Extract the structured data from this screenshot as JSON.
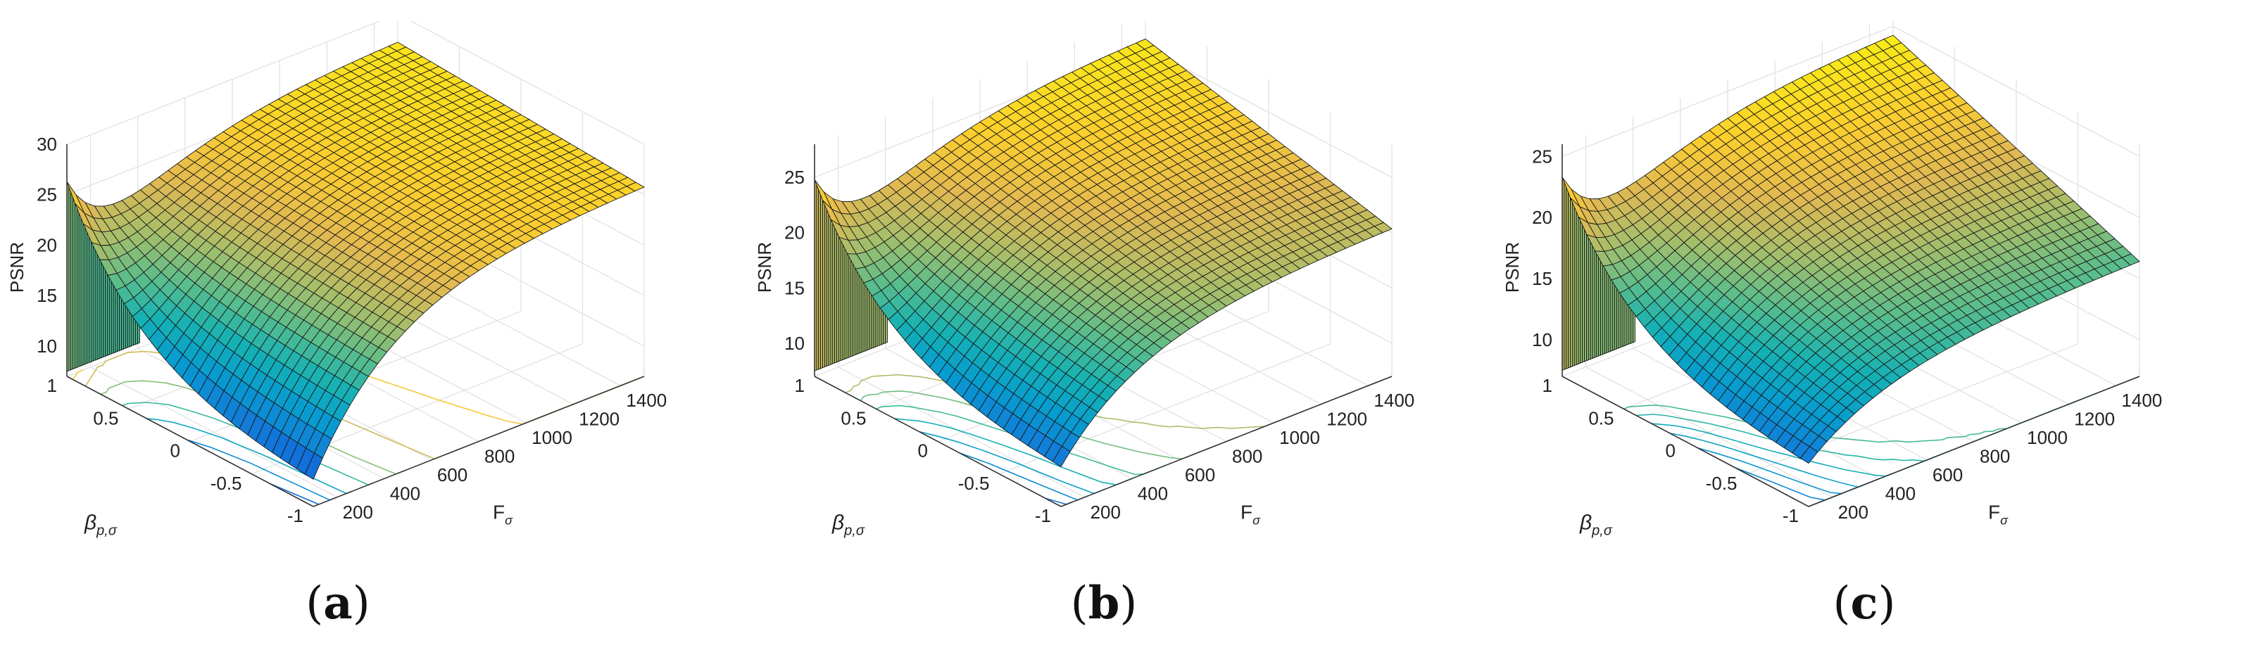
{
  "chart_data": [
    {
      "type": "surface",
      "panel_label": "a",
      "zlabel": "PSNR",
      "ylabel_base": "β",
      "ylabel_sub": "p,σ",
      "xlabel_base": "F",
      "xlabel_sub": "σ",
      "x_ticks": [
        "200",
        "400",
        "600",
        "800",
        "1000",
        "1200",
        "1400"
      ],
      "x_tick_values": [
        200,
        400,
        600,
        800,
        1000,
        1200,
        1400
      ],
      "y_ticks": [
        "-1",
        "-0.5",
        "0",
        "0.5",
        "1"
      ],
      "y_tick_values": [
        -1,
        -0.5,
        0,
        0.5,
        1
      ],
      "z_ticks": [
        "10",
        "15",
        "20",
        "25",
        "30"
      ],
      "z_tick_values": [
        10,
        15,
        20,
        25,
        30
      ],
      "xlim": [
        100,
        1500
      ],
      "ylim": [
        -1,
        1
      ],
      "zlim": [
        7,
        30
      ],
      "surface": {
        "base_level": 7.5,
        "ridge_psnr_at_beta_1": 27.5,
        "plateau_psnr_at_high_F": 26,
        "min_psnr_at_low_F_beta_minus1": 9,
        "cliff_low_value": 13.5
      },
      "grid": true,
      "colormap": "parula"
    },
    {
      "type": "surface",
      "panel_label": "b",
      "zlabel": "PSNR",
      "ylabel_base": "β",
      "ylabel_sub": "p,σ",
      "xlabel_base": "F",
      "xlabel_sub": "σ",
      "x_ticks": [
        "200",
        "400",
        "600",
        "800",
        "1000",
        "1200",
        "1400"
      ],
      "x_tick_values": [
        200,
        400,
        600,
        800,
        1000,
        1200,
        1400
      ],
      "y_ticks": [
        "-1",
        "-0.5",
        "0",
        "0.5",
        "1"
      ],
      "y_tick_values": [
        -1,
        -0.5,
        0,
        0.5,
        1
      ],
      "z_ticks": [
        "10",
        "15",
        "20",
        "25"
      ],
      "z_tick_values": [
        10,
        15,
        20,
        25
      ],
      "xlim": [
        100,
        1500
      ],
      "ylim": [
        -1,
        1
      ],
      "zlim": [
        7,
        28
      ],
      "surface": {
        "base_level": 7.5,
        "ridge_psnr_at_beta_1": 26,
        "plateau_psnr_at_high_F": 20.5,
        "min_psnr_at_low_F_beta_minus1": 10,
        "cliff_low_value": 17.5
      },
      "grid": true,
      "colormap": "parula"
    },
    {
      "type": "surface",
      "panel_label": "c",
      "zlabel": "PSNR",
      "ylabel_base": "β",
      "ylabel_sub": "p,σ",
      "xlabel_base": "F",
      "xlabel_sub": "σ",
      "x_ticks": [
        "200",
        "400",
        "600",
        "800",
        "1000",
        "1200",
        "1400"
      ],
      "x_tick_values": [
        200,
        400,
        600,
        800,
        1000,
        1200,
        1400
      ],
      "y_ticks": [
        "-1",
        "-0.5",
        "0",
        "0.5",
        "1"
      ],
      "y_tick_values": [
        -1,
        -0.5,
        0,
        0.5,
        1
      ],
      "z_ticks": [
        "10",
        "15",
        "20",
        "25"
      ],
      "z_tick_values": [
        10,
        15,
        20,
        25
      ],
      "xlim": [
        100,
        1500
      ],
      "ylim": [
        -1,
        1
      ],
      "zlim": [
        7,
        26
      ],
      "surface": {
        "base_level": 7.5,
        "ridge_psnr_at_beta_1": 24.5,
        "plateau_psnr_at_high_F": 16.5,
        "min_psnr_at_low_F_beta_minus1": 10,
        "cliff_low_value": 15
      },
      "grid": true,
      "colormap": "parula"
    }
  ],
  "captions": [
    "a",
    "b",
    "c"
  ]
}
